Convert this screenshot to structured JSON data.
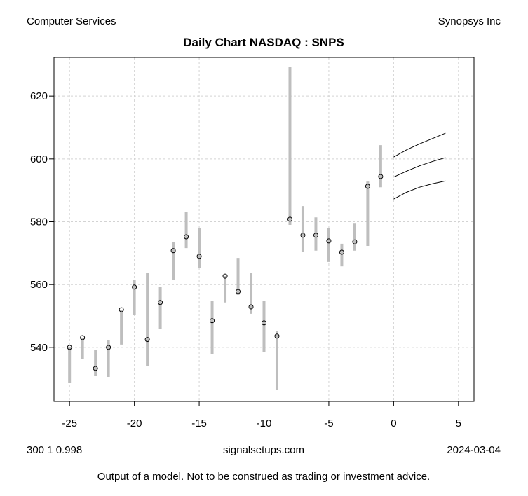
{
  "header": {
    "left": "Computer Services",
    "right": "Synopsys Inc"
  },
  "footer": {
    "left": "300 1 0.998",
    "center": "signalsetups.com",
    "right": "2024-03-04",
    "disclaimer": "Output of a model.  Not to be construed as trading or investment advice."
  },
  "colors": {
    "range": "#bebebe",
    "grid": "#d3d3d3",
    "forecast": "#000000"
  },
  "chart_data": {
    "type": "line",
    "title": "Daily Chart NASDAQ : SNPS",
    "xlabel": "",
    "ylabel": "",
    "xlim": [
      -26.2,
      6.2
    ],
    "ylim": [
      522.8,
      632.3
    ],
    "xticks": [
      -25,
      -20,
      -15,
      -10,
      -5,
      0,
      5
    ],
    "yticks": [
      540,
      560,
      580,
      600,
      620
    ],
    "grid": true,
    "bars": [
      {
        "x": -25,
        "low": 528.6,
        "high": 540.0,
        "close": 540.0
      },
      {
        "x": -24,
        "low": 536.2,
        "high": 543.1,
        "close": 543.1
      },
      {
        "x": -23,
        "low": 530.9,
        "high": 539.1,
        "close": 533.3
      },
      {
        "x": -22,
        "low": 530.6,
        "high": 542.2,
        "close": 540.0
      },
      {
        "x": -21,
        "low": 540.9,
        "high": 552.0,
        "close": 552.0
      },
      {
        "x": -20,
        "low": 550.3,
        "high": 561.6,
        "close": 559.2
      },
      {
        "x": -19,
        "low": 534.0,
        "high": 563.8,
        "close": 542.5
      },
      {
        "x": -18,
        "low": 545.8,
        "high": 559.2,
        "close": 554.3
      },
      {
        "x": -17,
        "low": 561.6,
        "high": 573.6,
        "close": 570.8
      },
      {
        "x": -16,
        "low": 571.6,
        "high": 583.0,
        "close": 575.2
      },
      {
        "x": -15,
        "low": 565.2,
        "high": 577.9,
        "close": 569.0
      },
      {
        "x": -14,
        "low": 537.8,
        "high": 554.7,
        "close": 548.5
      },
      {
        "x": -13,
        "low": 554.3,
        "high": 562.7,
        "close": 562.7
      },
      {
        "x": -12,
        "low": 556.7,
        "high": 568.5,
        "close": 557.8
      },
      {
        "x": -11,
        "low": 550.7,
        "high": 563.8,
        "close": 552.9
      },
      {
        "x": -10,
        "low": 538.4,
        "high": 554.9,
        "close": 547.8
      },
      {
        "x": -9,
        "low": 526.6,
        "high": 545.1,
        "close": 543.6
      },
      {
        "x": -8,
        "low": 579.0,
        "high": 629.4,
        "close": 580.8
      },
      {
        "x": -7,
        "low": 570.5,
        "high": 585.0,
        "close": 575.7
      },
      {
        "x": -6,
        "low": 570.8,
        "high": 581.4,
        "close": 575.7
      },
      {
        "x": -5,
        "low": 567.2,
        "high": 578.1,
        "close": 573.9
      },
      {
        "x": -4,
        "low": 565.8,
        "high": 573.0,
        "close": 570.3
      },
      {
        "x": -3,
        "low": 570.8,
        "high": 579.4,
        "close": 573.6
      },
      {
        "x": -2,
        "low": 572.3,
        "high": 592.8,
        "close": 591.3
      },
      {
        "x": -1,
        "low": 591.0,
        "high": 604.4,
        "close": 594.4
      }
    ],
    "forecast": {
      "x": [
        0,
        1,
        2,
        3,
        4
      ],
      "series": [
        {
          "name": "upper",
          "values": [
            600.6,
            602.9,
            604.8,
            606.5,
            608.2
          ]
        },
        {
          "name": "mid",
          "values": [
            594.2,
            596.1,
            597.8,
            599.2,
            600.4
          ]
        },
        {
          "name": "lower",
          "values": [
            587.2,
            589.4,
            591.0,
            592.1,
            593.0
          ]
        }
      ]
    }
  }
}
